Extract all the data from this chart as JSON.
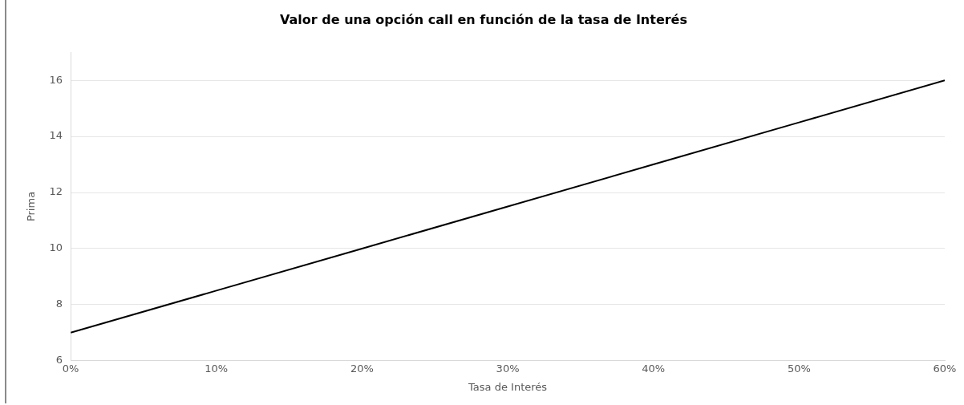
{
  "chart_data": {
    "type": "line",
    "title": "Valor de una opción call en función de la tasa de Interés",
    "xlabel": "Tasa de Interés",
    "ylabel": "Prima",
    "x": [
      0,
      0.1,
      0.2,
      0.3,
      0.4,
      0.5,
      0.6
    ],
    "series": [
      {
        "color": "#000000",
        "values": [
          7,
          8.5,
          10,
          11.5,
          13,
          14.5,
          16
        ]
      }
    ],
    "xlim": [
      0,
      0.6
    ],
    "xticks": [
      {
        "value": 0,
        "label": "0%"
      },
      {
        "value": 0.1,
        "label": "10%"
      },
      {
        "value": 0.2,
        "label": "20%"
      },
      {
        "value": 0.3,
        "label": "30%"
      },
      {
        "value": 0.4,
        "label": "40%"
      },
      {
        "value": 0.5,
        "label": "50%"
      },
      {
        "value": 0.6,
        "label": "60%"
      }
    ],
    "ylim": [
      6,
      17
    ],
    "yticks": [
      6,
      8,
      10,
      12,
      14,
      16
    ],
    "grid": "y",
    "legend": false,
    "marker": "none",
    "line_style": "solid"
  }
}
